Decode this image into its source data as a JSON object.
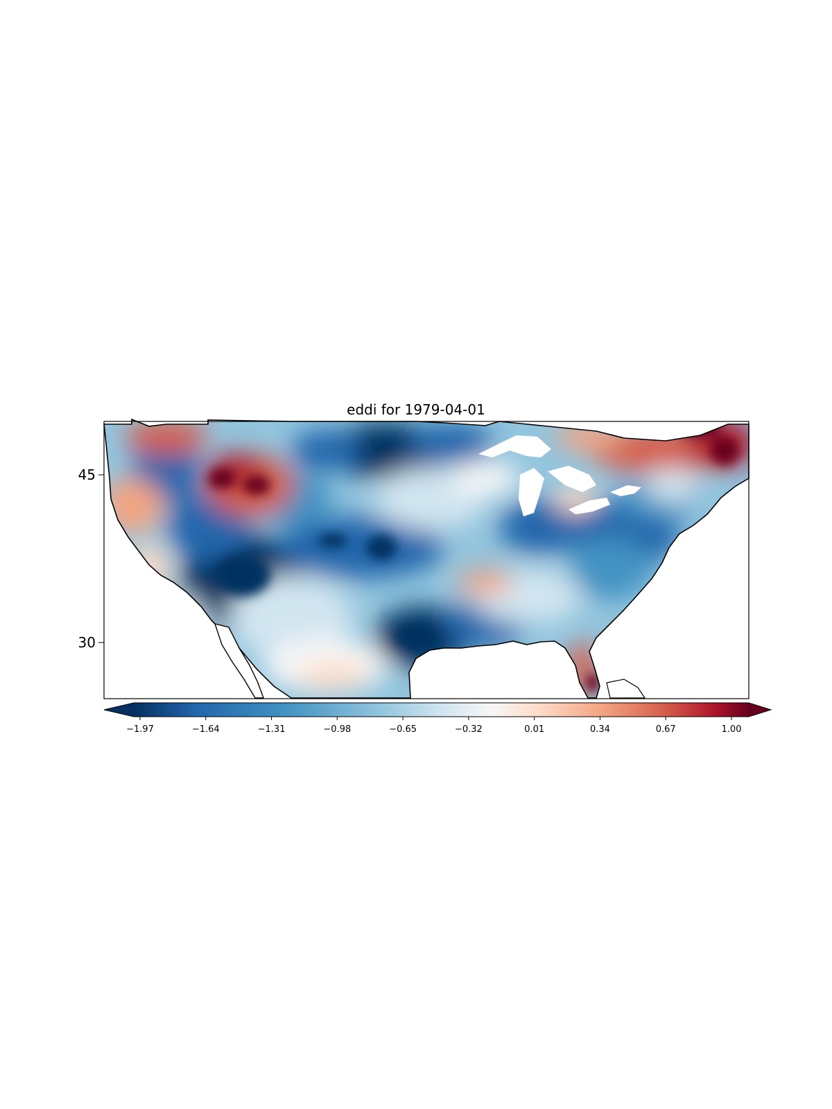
{
  "figure": {
    "title": "eddi for 1979-04-01"
  },
  "map": {
    "variable": "eddi",
    "date": "1979-04-01",
    "region": "Contiguous United States",
    "colormap": "RdBu_r",
    "lat_ticks": [
      {
        "value": 45,
        "label": "45"
      },
      {
        "value": 30,
        "label": "30"
      }
    ],
    "lat_range": [
      25,
      49.5
    ],
    "lon_range": [
      -125,
      -67
    ],
    "missing_areas": [
      "Great Lakes"
    ]
  },
  "colorbar": {
    "vmin": -2.13,
    "vmax": 1.08,
    "extend": "both",
    "ticks": [
      {
        "value": -1.97,
        "label": "−1.97"
      },
      {
        "value": -1.64,
        "label": "−1.64"
      },
      {
        "value": -1.31,
        "label": "−1.31"
      },
      {
        "value": -0.98,
        "label": "−0.98"
      },
      {
        "value": -0.65,
        "label": "−0.65"
      },
      {
        "value": -0.32,
        "label": "−0.32"
      },
      {
        "value": 0.01,
        "label": "0.01"
      },
      {
        "value": 0.34,
        "label": "0.34"
      },
      {
        "value": 0.67,
        "label": "0.67"
      },
      {
        "value": 1.0,
        "label": "1.00"
      }
    ],
    "colors": {
      "dark_blue": "#053061",
      "blue": "#2166ac",
      "mid_blue": "#4393c3",
      "light_blue": "#92c5de",
      "pale_blue": "#d1e5f0",
      "white": "#f7f7f7",
      "pale_red": "#fddbc7",
      "light_red": "#f4a582",
      "mid_red": "#d6604d",
      "red": "#b2182b",
      "dark_red": "#67001f"
    }
  }
}
